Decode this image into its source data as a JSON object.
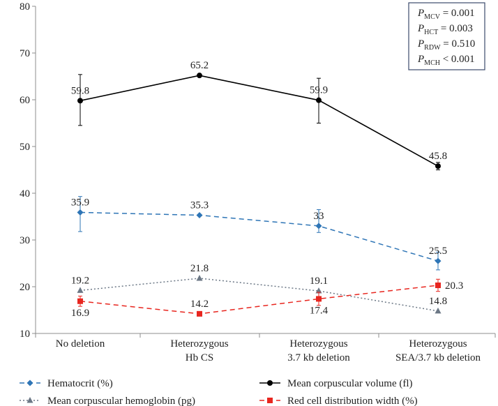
{
  "chart_data": {
    "type": "line",
    "categories": [
      [
        "No deletion"
      ],
      [
        "Heterozygous",
        "Hb CS"
      ],
      [
        "Heterozygous",
        "3.7 kb deletion"
      ],
      [
        "Heterozygous",
        "SEA/3.7 kb deletion"
      ]
    ],
    "ylim": [
      10,
      80
    ],
    "yticks": [
      10,
      20,
      30,
      40,
      50,
      60,
      70,
      80
    ],
    "grid": false,
    "legend_position": "bottom",
    "series": [
      {
        "name": "Mean corpuscular volume (fl)",
        "key": "mcv",
        "values": [
          59.8,
          65.2,
          59.9,
          45.8
        ],
        "labels": [
          "59.8",
          "65.2",
          "59.9",
          "45.8"
        ],
        "error": [
          [
            54.5,
            65.4
          ],
          null,
          [
            55.0,
            64.6
          ],
          [
            45.0,
            46.6
          ]
        ],
        "color": "#000000",
        "line": "solid",
        "marker": "circle",
        "label_pos": [
          "above",
          "above",
          "above",
          "above"
        ]
      },
      {
        "name": "Hematocrit (%)",
        "key": "hct",
        "values": [
          35.9,
          35.3,
          33.0,
          25.5
        ],
        "labels": [
          "35.9",
          "35.3",
          "33",
          "25.5"
        ],
        "error": [
          [
            31.8,
            39.3
          ],
          null,
          [
            31.6,
            36.5
          ],
          [
            23.6,
            27.4
          ]
        ],
        "color": "#2e75b6",
        "line": "dashed",
        "marker": "diamond",
        "label_pos": [
          "above",
          "above",
          "above",
          "above"
        ]
      },
      {
        "name": "Mean corpuscular hemoglobin (pg)",
        "key": "mch",
        "values": [
          19.2,
          21.8,
          19.1,
          14.8
        ],
        "labels": [
          "19.2",
          "21.8",
          "19.1",
          "14.8"
        ],
        "error": [
          null,
          null,
          null,
          null
        ],
        "color": "#6b7785",
        "line": "dotted",
        "marker": "triangle",
        "label_pos": [
          "above",
          "above",
          "above",
          "above"
        ]
      },
      {
        "name": "Red cell distribution width (%)",
        "key": "rdw",
        "values": [
          16.9,
          14.2,
          17.4,
          20.3
        ],
        "labels": [
          "16.9",
          "14.2",
          "17.4",
          "20.3"
        ],
        "error": [
          [
            15.8,
            18.0
          ],
          null,
          [
            16.0,
            18.8
          ],
          [
            19.0,
            21.6
          ]
        ],
        "color": "#e8261f",
        "line": "dashed",
        "marker": "square",
        "label_pos": [
          "below",
          "above",
          "below",
          "right"
        ]
      }
    ],
    "legend": [
      {
        "series": "hct",
        "label": "Hematocrit (%)"
      },
      {
        "series": "mcv",
        "label": "Mean corpuscular volume (fl)"
      },
      {
        "series": "mch",
        "label": "Mean corpuscular hemoglobin (pg)"
      },
      {
        "series": "rdw",
        "label": "Red cell distribution width (%)"
      }
    ],
    "pvalues": [
      {
        "sub": "MCV",
        "op": "=",
        "value": "0.001"
      },
      {
        "sub": "HCT",
        "op": "=",
        "value": "0.003"
      },
      {
        "sub": "RDW",
        "op": "=",
        "value": "0.510"
      },
      {
        "sub": "MCH",
        "op": "<",
        "value": "0.001"
      }
    ],
    "pvalue_symbol": "P"
  }
}
